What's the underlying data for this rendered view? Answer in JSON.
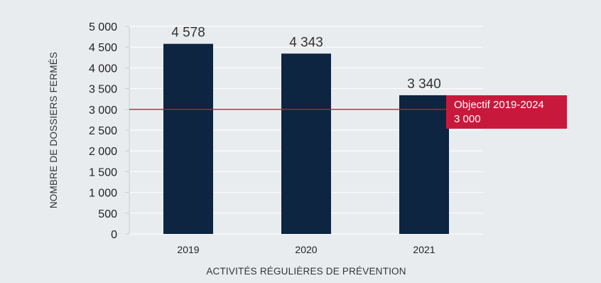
{
  "chart_data": {
    "type": "bar",
    "categories": [
      "2019",
      "2020",
      "2021"
    ],
    "values": [
      4578,
      4343,
      3340
    ],
    "data_labels": [
      "4 578",
      "4 343",
      "3 340"
    ],
    "ylim": [
      0,
      5000
    ],
    "y_ticks": [
      0,
      500,
      1000,
      1500,
      2000,
      2500,
      3000,
      3500,
      4000,
      4500,
      5000
    ],
    "y_tick_labels": [
      "0",
      "500",
      "1 000",
      "1 500",
      "2 000",
      "2 500",
      "3 000",
      "3 500",
      "4 000",
      "4 500",
      "5 000"
    ],
    "xlabel": "ACTIVITÉS RÉGULIÈRES DE PRÉVENTION",
    "ylabel": "NOMBRE DE DOSSIERS FERMÉS",
    "grid": true,
    "legend": "none",
    "bar_color": "#0d2540",
    "target": {
      "value": 3000,
      "label_line1": "Objectif 2019-2024",
      "label_line2": "3 000",
      "color": "#c8193c"
    }
  }
}
